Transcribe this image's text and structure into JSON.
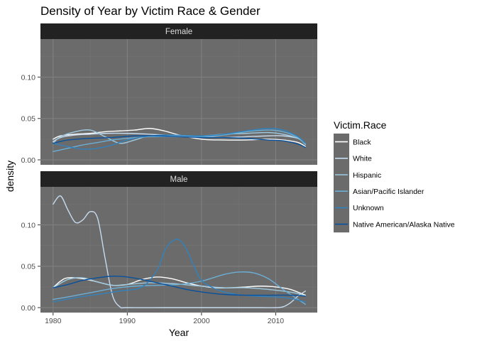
{
  "chart_data": {
    "type": "line",
    "title": "Density of Year by Victim Race & Gender",
    "xlabel": "Year",
    "ylabel": "density",
    "xlim": [
      1978.3,
      2015.6
    ],
    "ylim": [
      -0.006,
      0.146
    ],
    "x_ticks": [
      1980,
      1990,
      2000,
      2010
    ],
    "x_tick_labels": [
      "1980",
      "1990",
      "2000",
      "2010"
    ],
    "y_ticks": [
      0,
      0.05,
      0.1
    ],
    "y_tick_labels": [
      "0.00",
      "0.05",
      "0.10"
    ],
    "grid": true,
    "panel_background": "#6b6b6b",
    "strip_background": "#222222",
    "legend": {
      "title": "Victim.Race",
      "placement": "right",
      "background": "#6b6b6b"
    },
    "series": [
      {
        "name": "Black",
        "color": "#ffffff"
      },
      {
        "name": "White",
        "color": "#c6dbef"
      },
      {
        "name": "Hispanic",
        "color": "#9ecae1"
      },
      {
        "name": "Asian/Pacific Islander",
        "color": "#6baed6"
      },
      {
        "name": "Unknown",
        "color": "#3182bd"
      },
      {
        "name": "Native American/Alaska Native",
        "color": "#08519c"
      }
    ],
    "panels": [
      {
        "label": "Female",
        "series": [
          {
            "name": "Black",
            "x": [
              1980,
              1981,
              1983,
              1985,
              1987,
              1989,
              1991,
              1993,
              1995,
              1997,
              2000,
              2003,
              2006,
              2009,
              2011,
              2013,
              2014
            ],
            "y": [
              0.025,
              0.029,
              0.031,
              0.032,
              0.034,
              0.035,
              0.036,
              0.038,
              0.035,
              0.03,
              0.025,
              0.024,
              0.024,
              0.025,
              0.024,
              0.021,
              0.016
            ]
          },
          {
            "name": "White",
            "x": [
              1980,
              1981,
              1983,
              1985,
              1987,
              1990,
              1993,
              1995,
              1997,
              2000,
              2003,
              2006,
              2009,
              2011,
              2013,
              2014
            ],
            "y": [
              0.022,
              0.027,
              0.03,
              0.031,
              0.032,
              0.032,
              0.031,
              0.03,
              0.029,
              0.028,
              0.027,
              0.028,
              0.029,
              0.029,
              0.026,
              0.02
            ]
          },
          {
            "name": "Hispanic",
            "x": [
              1980,
              1981,
              1983,
              1985,
              1987,
              1989,
              1991,
              1993,
              1996,
              2000,
              2003,
              2006,
              2009,
              2011,
              2013,
              2014
            ],
            "y": [
              0.02,
              0.028,
              0.034,
              0.036,
              0.028,
              0.02,
              0.024,
              0.029,
              0.029,
              0.029,
              0.031,
              0.032,
              0.033,
              0.031,
              0.026,
              0.019
            ]
          },
          {
            "name": "Asian/Pacific Islander",
            "x": [
              1980,
              1982,
              1984,
              1986,
              1988,
              1990,
              1993,
              1996,
              2000,
              2003,
              2006,
              2009,
              2011,
              2013,
              2014
            ],
            "y": [
              0.01,
              0.014,
              0.018,
              0.021,
              0.024,
              0.026,
              0.028,
              0.028,
              0.028,
              0.03,
              0.034,
              0.036,
              0.034,
              0.027,
              0.018
            ]
          },
          {
            "name": "Unknown",
            "x": [
              1980,
              1982,
              1984,
              1986,
              1988,
              1990,
              1993,
              1996,
              2000,
              2003,
              2006,
              2009,
              2011,
              2013,
              2014
            ],
            "y": [
              0.02,
              0.016,
              0.013,
              0.014,
              0.018,
              0.024,
              0.029,
              0.03,
              0.029,
              0.031,
              0.035,
              0.038,
              0.036,
              0.028,
              0.02
            ]
          },
          {
            "name": "Native American/Alaska Native",
            "x": [
              1980,
              1982,
              1985,
              1988,
              1991,
              1994,
              1997,
              2000,
              2003,
              2006,
              2009,
              2011,
              2013,
              2014
            ],
            "y": [
              0.02,
              0.024,
              0.026,
              0.027,
              0.029,
              0.029,
              0.028,
              0.027,
              0.027,
              0.026,
              0.024,
              0.023,
              0.019,
              0.015
            ]
          }
        ]
      },
      {
        "label": "Male",
        "series": [
          {
            "name": "Black",
            "x": [
              1980,
              1981,
              1982,
              1984,
              1986,
              1988,
              1990,
              1992,
              1994,
              1996,
              1998,
              2000,
              2002,
              2004,
              2006,
              2008,
              2010,
              2012,
              2014
            ],
            "y": [
              0.024,
              0.032,
              0.036,
              0.035,
              0.031,
              0.027,
              0.028,
              0.034,
              0.037,
              0.035,
              0.03,
              0.026,
              0.024,
              0.024,
              0.025,
              0.026,
              0.025,
              0.022,
              0.015
            ]
          },
          {
            "name": "White",
            "x": [
              1980,
              1981,
              1982,
              1983,
              1984,
              1985,
              1986,
              1987,
              1988,
              1989,
              1990,
              1995,
              2000,
              2005,
              2008,
              2010,
              2011,
              2012,
              2013,
              2014
            ],
            "y": [
              0.125,
              0.135,
              0.118,
              0.103,
              0.106,
              0.116,
              0.108,
              0.06,
              0.015,
              0.001,
              0.0,
              0.0,
              0.0,
              0.0,
              0.0,
              0.0,
              0.001,
              0.006,
              0.014,
              0.02
            ]
          },
          {
            "name": "Hispanic",
            "x": [
              1980,
              1982,
              1984,
              1986,
              1988,
              1990,
              1993,
              1996,
              2000,
              2003,
              2006,
              2009,
              2011,
              2013,
              2014
            ],
            "y": [
              0.024,
              0.034,
              0.036,
              0.031,
              0.027,
              0.028,
              0.03,
              0.029,
              0.026,
              0.024,
              0.024,
              0.022,
              0.02,
              0.017,
              0.014
            ]
          },
          {
            "name": "Asian/Pacific Islander",
            "x": [
              1980,
              1982,
              1985,
              1988,
              1991,
              1994,
              1997,
              2000,
              2003,
              2005,
              2007,
              2009,
              2011,
              2013,
              2014
            ],
            "y": [
              0.01,
              0.013,
              0.018,
              0.023,
              0.026,
              0.027,
              0.028,
              0.032,
              0.04,
              0.043,
              0.042,
              0.035,
              0.022,
              0.01,
              0.004
            ]
          },
          {
            "name": "Unknown",
            "x": [
              1980,
              1983,
              1986,
              1989,
              1992,
              1994,
              1995,
              1996,
              1997,
              1998,
              1999,
              2000,
              2002,
              2004,
              2007,
              2010,
              2012,
              2014
            ],
            "y": [
              0.007,
              0.012,
              0.016,
              0.02,
              0.025,
              0.045,
              0.068,
              0.08,
              0.082,
              0.07,
              0.05,
              0.033,
              0.022,
              0.017,
              0.014,
              0.013,
              0.011,
              0.007
            ]
          },
          {
            "name": "Native American/Alaska Native",
            "x": [
              1980,
              1982,
              1984,
              1986,
              1988,
              1990,
              1992,
              1994,
              1996,
              1998,
              2000,
              2003,
              2006,
              2009,
              2012,
              2014
            ],
            "y": [
              0.024,
              0.028,
              0.033,
              0.036,
              0.038,
              0.037,
              0.034,
              0.03,
              0.026,
              0.022,
              0.019,
              0.016,
              0.015,
              0.015,
              0.015,
              0.014
            ]
          }
        ]
      }
    ]
  }
}
